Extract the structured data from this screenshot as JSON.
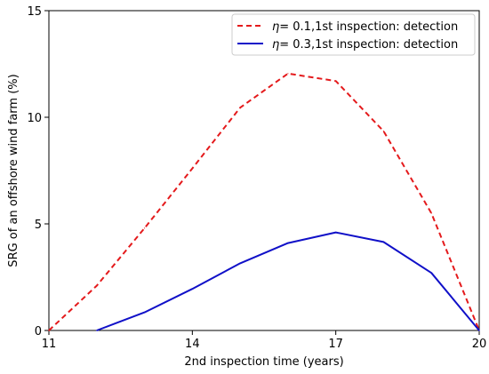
{
  "chart_data": {
    "type": "line",
    "xlabel": "2nd inspection time (years)",
    "ylabel": "SRG of an offshore wind farm (%)",
    "xlim": [
      11,
      20
    ],
    "ylim": [
      0,
      15
    ],
    "x_ticks": [
      "11",
      "14",
      "17",
      "20"
    ],
    "y_ticks": [
      "0",
      "5",
      "10",
      "15"
    ],
    "grid": false,
    "legend_position": "top-right",
    "series": [
      {
        "name_symbol": "η",
        "name_rest": "= 0.1,1st inspection: detection",
        "color": "#e41a1c",
        "style": "dashed",
        "x": [
          11,
          12,
          13,
          14,
          15,
          16,
          17,
          18,
          19,
          20
        ],
        "y": [
          0,
          2.1,
          4.8,
          7.6,
          10.45,
          12.05,
          11.7,
          9.35,
          5.5,
          0
        ]
      },
      {
        "name_symbol": "η",
        "name_rest": "= 0.3,1st inspection: detection",
        "color": "#1010c8",
        "style": "solid",
        "x": [
          12,
          13,
          14,
          15,
          16,
          17,
          18,
          19,
          20
        ],
        "y": [
          0,
          0.85,
          1.95,
          3.15,
          4.1,
          4.6,
          4.15,
          2.7,
          0
        ]
      }
    ]
  }
}
